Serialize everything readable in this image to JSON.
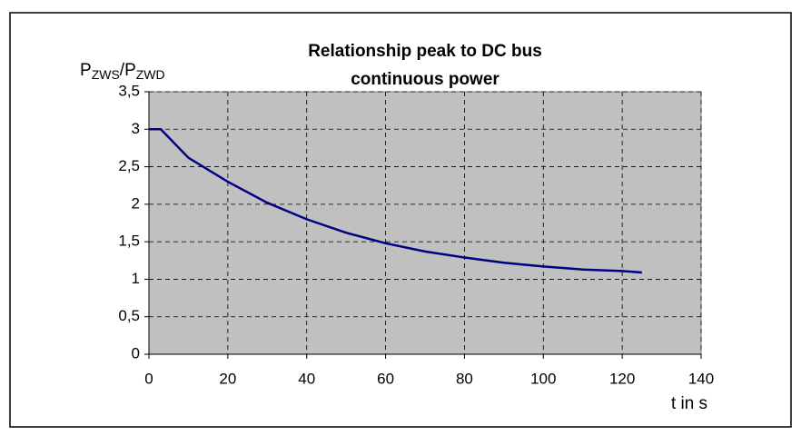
{
  "chart_data": {
    "type": "line",
    "title": [
      "Relationship peak to DC bus",
      "continuous power"
    ],
    "ylabel": [
      "P",
      "ZWS",
      "/P",
      "ZWD"
    ],
    "xlabel": "t in s",
    "x": [
      0,
      3,
      10,
      20,
      30,
      40,
      50,
      60,
      70,
      80,
      90,
      100,
      110,
      120,
      125
    ],
    "series": [
      {
        "name": null,
        "color": "#000080",
        "values": [
          3,
          3,
          2.62,
          2.3,
          2.02,
          1.8,
          1.62,
          1.48,
          1.37,
          1.29,
          1.22,
          1.17,
          1.13,
          1.11,
          1.09
        ]
      }
    ],
    "xlim": [
      0,
      140
    ],
    "xticks": [
      0,
      20,
      40,
      60,
      80,
      100,
      120,
      140
    ],
    "ylim": [
      0,
      3.5
    ],
    "yticks": [
      0,
      {
        "value": 0.5,
        "label": "0,5"
      },
      1,
      {
        "value": 1.5,
        "label": "1,5"
      },
      2,
      {
        "value": 2.5,
        "label": "2,5"
      },
      3,
      {
        "value": 3.5,
        "label": "3,5"
      }
    ],
    "grid": true,
    "plot_background": "#c0c0c0"
  }
}
